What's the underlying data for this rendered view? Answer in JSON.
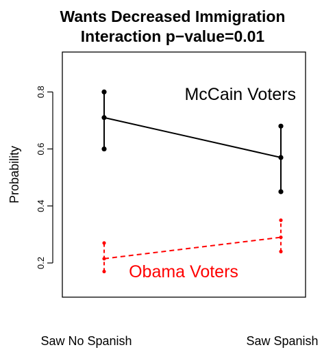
{
  "chart_data": {
    "type": "line",
    "title": "Wants Decreased Immigration",
    "subtitle": "Interaction p−value=0.01",
    "xlabel": "",
    "ylabel": "Probability",
    "categories": [
      "Saw No Spanish",
      "Saw Spanish"
    ],
    "yticks": [
      "0.2",
      "0.4",
      "0.6",
      "0.8"
    ],
    "ylim": [
      0.08,
      0.94
    ],
    "grid": false,
    "series": [
      {
        "name": "McCain Voters",
        "color": "#000000",
        "linestyle": "solid",
        "values": [
          0.71,
          0.57
        ],
        "lower": [
          0.6,
          0.45
        ],
        "upper": [
          0.8,
          0.68
        ]
      },
      {
        "name": "Obama Voters",
        "color": "#ff0000",
        "linestyle": "dashed",
        "values": [
          0.215,
          0.29
        ],
        "lower": [
          0.17,
          0.24
        ],
        "upper": [
          0.27,
          0.35
        ]
      }
    ]
  }
}
